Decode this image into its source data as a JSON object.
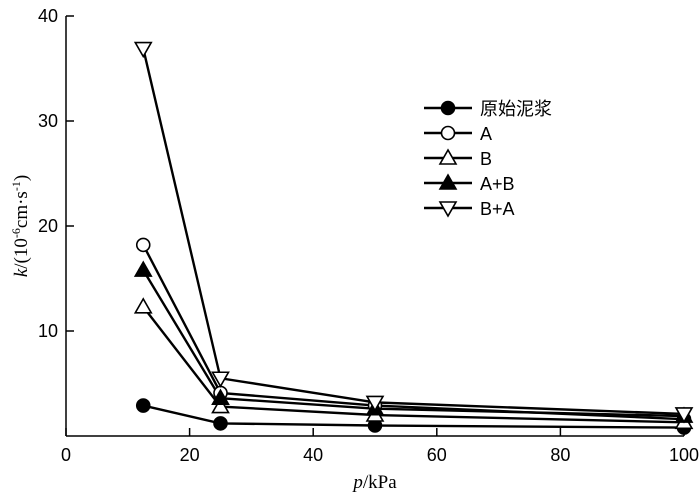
{
  "chart_data": {
    "type": "line",
    "xlabel": "p/kPa",
    "ylabel": "k/(10⁻⁶cm·s⁻¹)",
    "xlim": [
      0,
      100
    ],
    "ylim": [
      0,
      40
    ],
    "xticks": [
      "0",
      "20",
      "40",
      "60",
      "80",
      "100"
    ],
    "yticks": [
      "0",
      "10",
      "20",
      "30",
      "40"
    ],
    "grid": false,
    "legend_position": "top-right",
    "x": [
      12.5,
      25,
      50,
      100
    ],
    "series": [
      {
        "name": "原始泥浆",
        "marker": "circle-filled",
        "values": [
          2.9,
          1.2,
          1.0,
          0.8
        ]
      },
      {
        "name": "A",
        "marker": "circle-open",
        "values": [
          18.2,
          4.1,
          2.9,
          1.6
        ]
      },
      {
        "name": "B",
        "marker": "triangle-up-open",
        "values": [
          12.3,
          2.8,
          2.0,
          1.3
        ]
      },
      {
        "name": "A+B",
        "marker": "triangle-up-filled",
        "values": [
          15.8,
          3.6,
          2.6,
          1.9
        ]
      },
      {
        "name": "B+A",
        "marker": "triangle-down-open",
        "values": [
          36.9,
          5.5,
          3.2,
          2.1
        ]
      }
    ]
  }
}
